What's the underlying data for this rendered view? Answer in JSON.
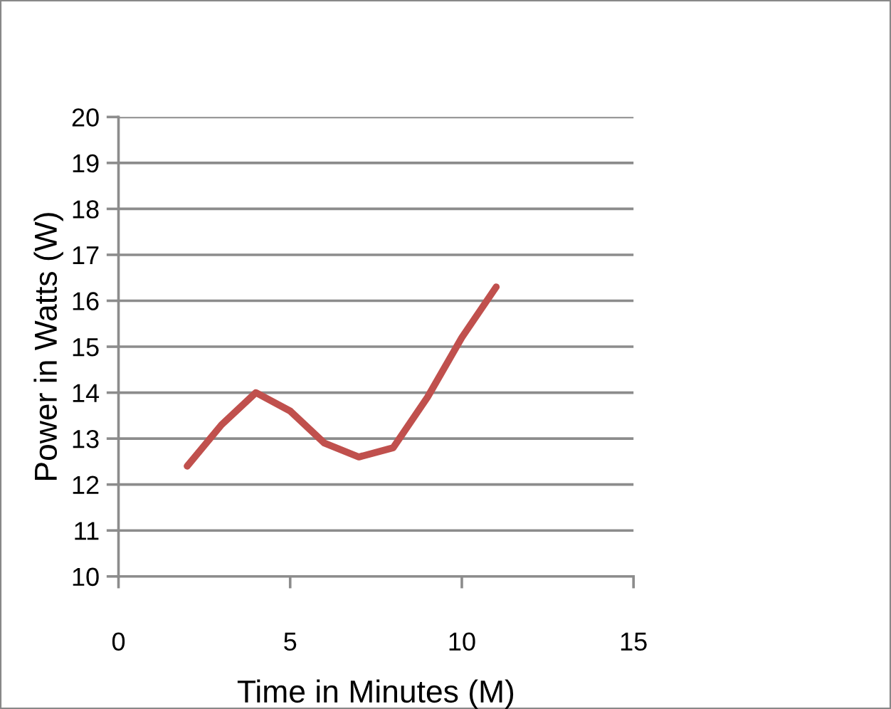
{
  "chart_data": {
    "type": "line",
    "xlabel": "Time in Minutes (M)",
    "ylabel": "Power in Watts (W)",
    "x": [
      2,
      3,
      4,
      5,
      6,
      7,
      8,
      9,
      10,
      11
    ],
    "series": [
      {
        "color": "#c0504d",
        "values": [
          12.4,
          13.3,
          14.0,
          13.6,
          12.9,
          12.6,
          12.8,
          13.9,
          15.2,
          16.3
        ]
      }
    ],
    "xlim": [
      0,
      15
    ],
    "xticks": [
      0,
      5,
      10,
      15
    ],
    "ylim": [
      10,
      20
    ],
    "yticks": [
      10,
      11,
      12,
      13,
      14,
      15,
      16,
      17,
      18,
      19,
      20
    ],
    "grid": "y",
    "marker": "none",
    "line_style": "solid"
  }
}
